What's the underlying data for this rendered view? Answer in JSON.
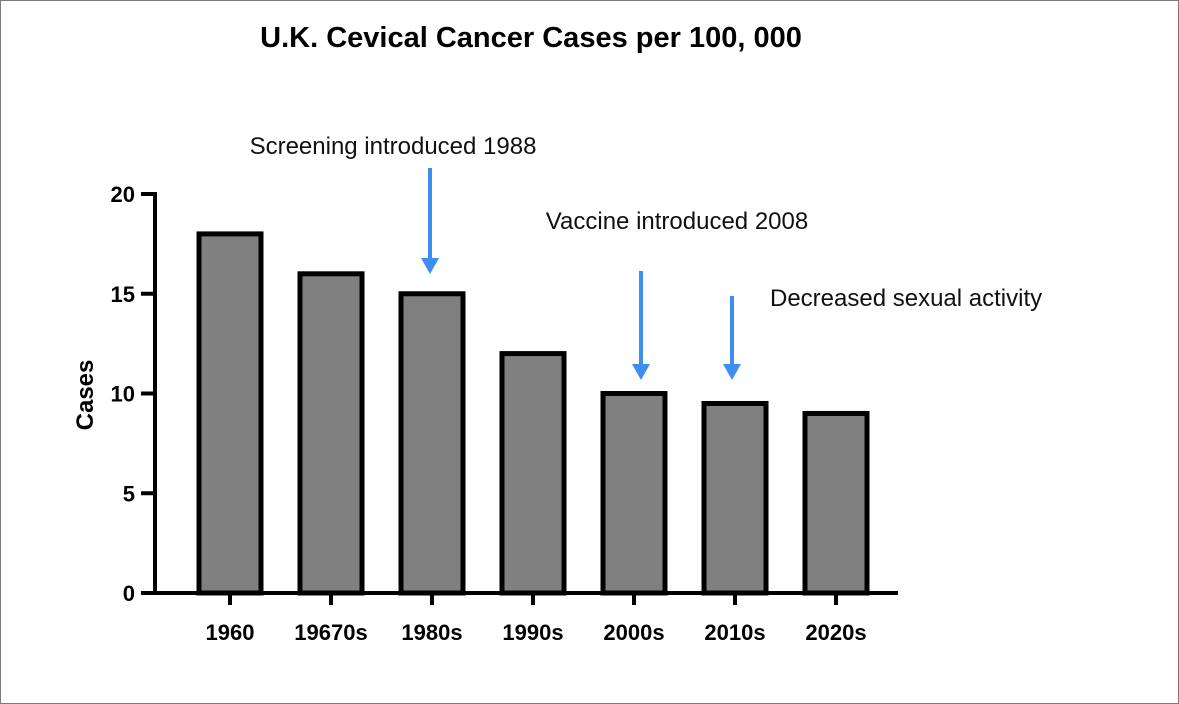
{
  "chart_data": {
    "type": "bar",
    "title": "U.K. Cevical Cancer Cases per 100, 000",
    "xlabel": "",
    "ylabel": "Cases",
    "categories": [
      "1960",
      "19670s",
      "1980s",
      "1990s",
      "2000s",
      "2010s",
      "2020s"
    ],
    "values": [
      18,
      16,
      15,
      12,
      10,
      9.5,
      9
    ],
    "ylim": [
      0,
      20
    ],
    "yticks": [
      0,
      5,
      10,
      15,
      20
    ],
    "grid": false,
    "bar_color": "#808080",
    "annotations": [
      {
        "text": "Screening introduced 1988",
        "category": "1980s"
      },
      {
        "text": "Vaccine introduced 2008",
        "category": "2000s"
      },
      {
        "text": "Decreased sexual activity",
        "category": "2010s"
      }
    ],
    "arrow_color": "#3d8ef0"
  }
}
